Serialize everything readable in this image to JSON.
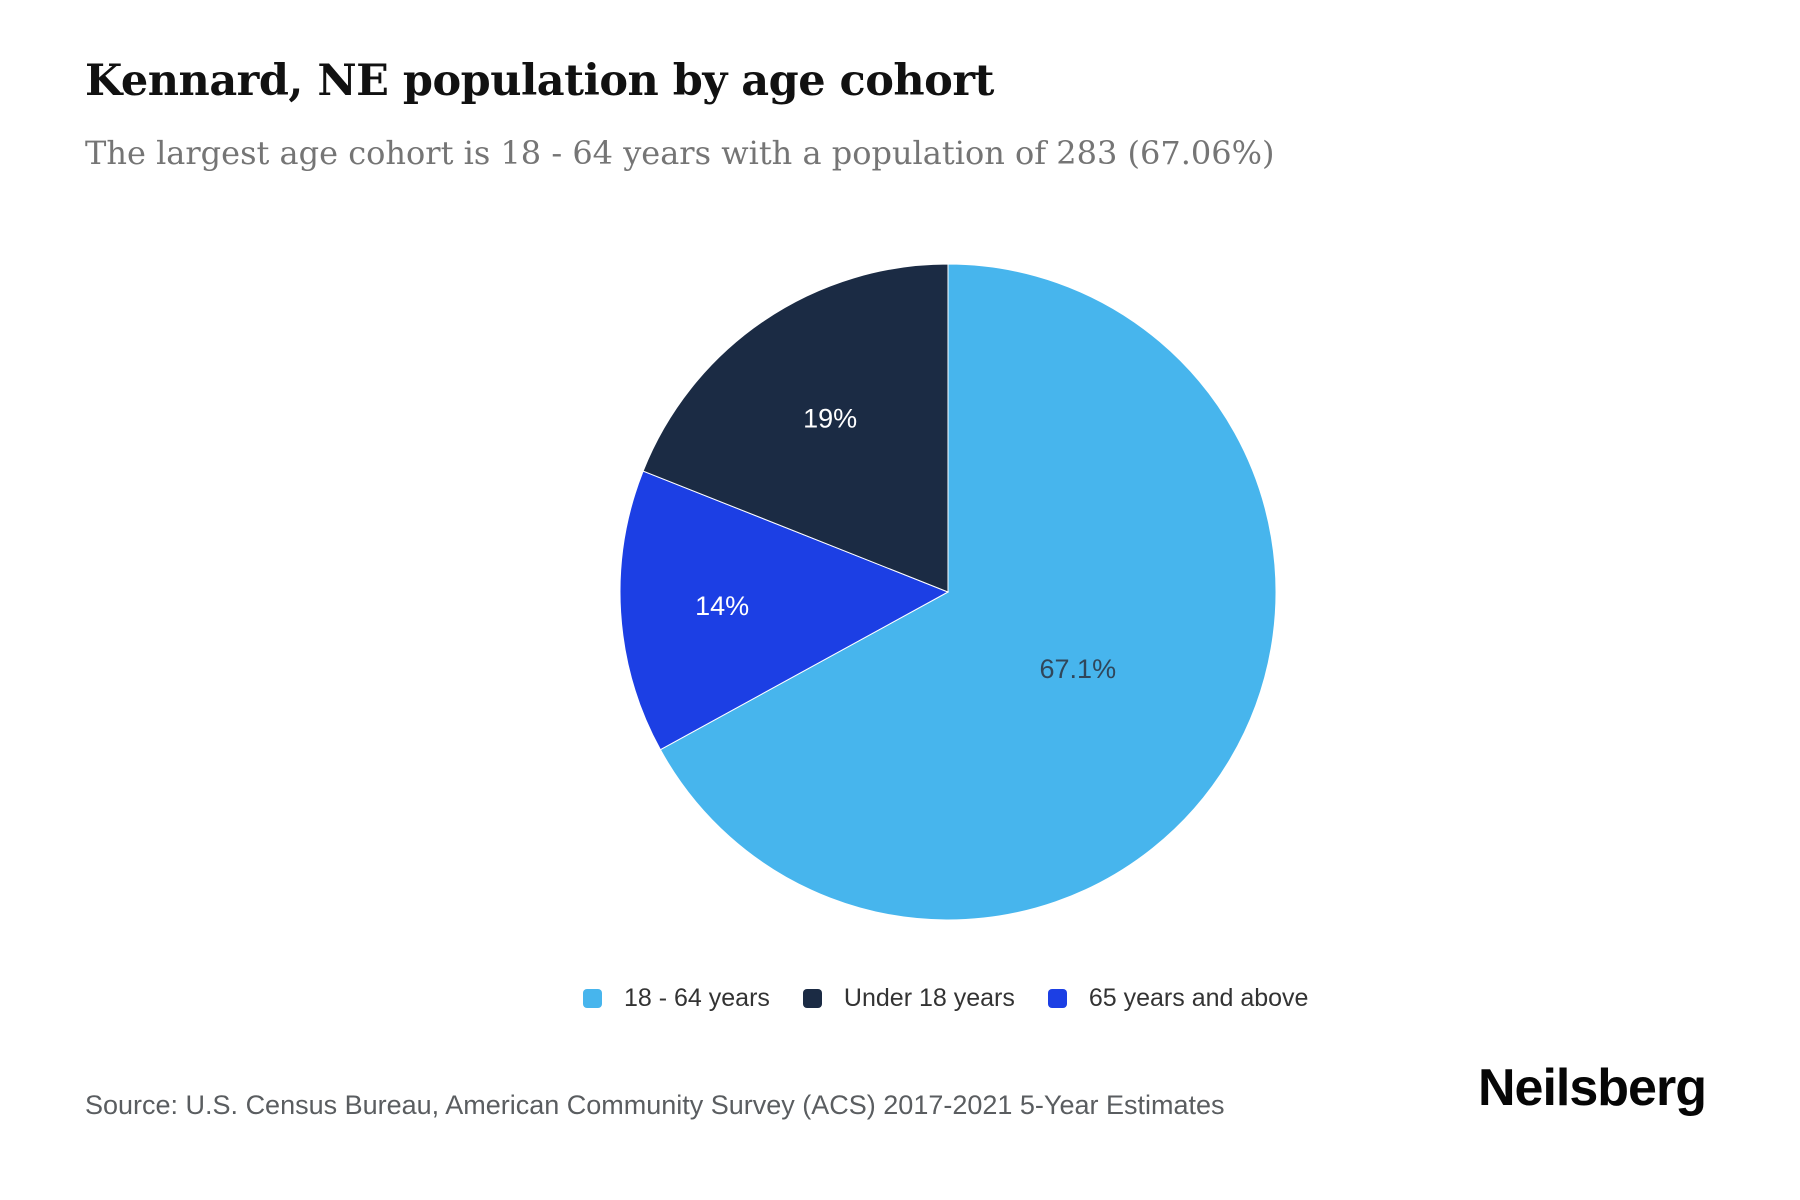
{
  "chart_data": {
    "type": "pie",
    "title": "Kennard, NE population by age cohort",
    "subtitle": "The largest age cohort is 18 - 64 years with a population of 283 (67.06%)",
    "unit": "percent of population",
    "largest_cohort": {
      "label": "18 - 64 years",
      "population": 283,
      "share_pct": 67.06
    },
    "start_angle_deg": 0,
    "direction": "clockwise",
    "slices": [
      {
        "label": "18 - 64 years",
        "value_pct": 67.06,
        "data_label": "67.1%",
        "color": "#47b5ed",
        "label_color": "#30465a"
      },
      {
        "label": "65 years and above",
        "value_pct": 14,
        "data_label": "14%",
        "color": "#1c3fe4",
        "label_color": "#ffffff"
      },
      {
        "label": "Under 18 years",
        "value_pct": 19,
        "data_label": "19%",
        "color": "#1b2b44",
        "label_color": "#ffffff"
      }
    ],
    "legend": {
      "position": "bottom-center",
      "order": [
        "18 - 64 years",
        "Under 18 years",
        "65 years and above"
      ]
    }
  },
  "footer": {
    "source": "Source: U.S. Census Bureau, American Community Survey (ACS) 2017-2021 5-Year Estimates",
    "brand": "Neilsberg"
  }
}
